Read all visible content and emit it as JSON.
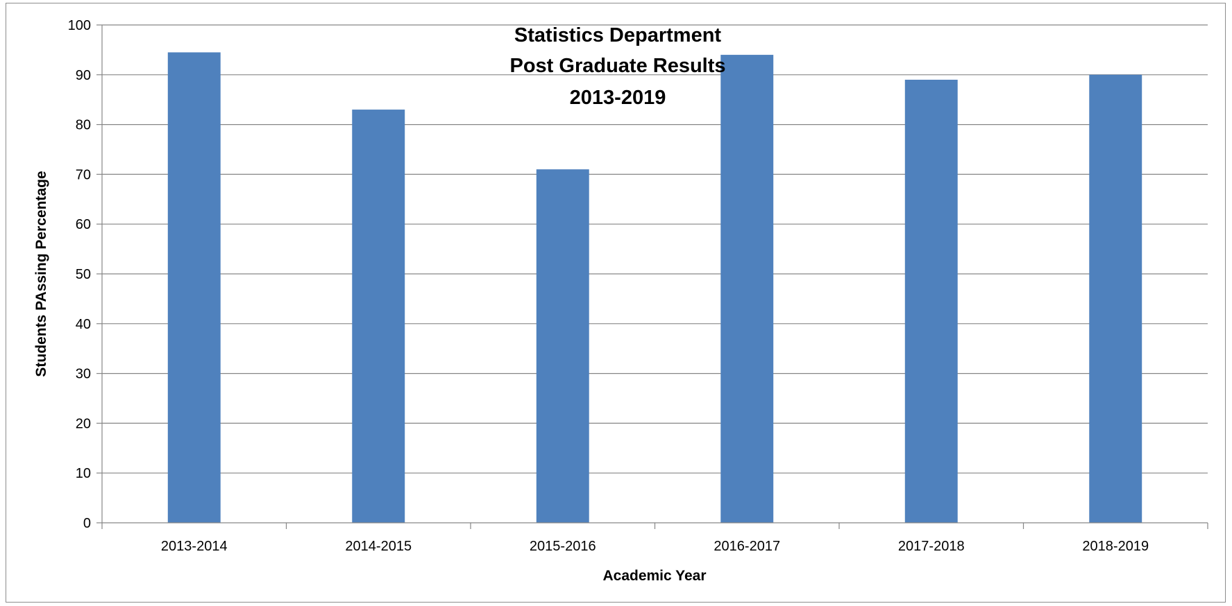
{
  "chart_data": {
    "type": "bar",
    "title_lines": [
      "Statistics Department",
      "Post Graduate Results",
      "2013-2019"
    ],
    "xlabel": "Academic Year",
    "ylabel": "Students PAssing Percentage",
    "categories": [
      "2013-2014",
      "2014-2015",
      "2015-2016",
      "2016-2017",
      "2017-2018",
      "2018-2019"
    ],
    "values": [
      94.5,
      83,
      71,
      94,
      89,
      90
    ],
    "ylim": [
      0,
      100
    ],
    "yticks": [
      "0",
      "10",
      "20",
      "30",
      "40",
      "50",
      "60",
      "70",
      "80",
      "90",
      "100"
    ],
    "grid": true,
    "legend": "none",
    "bar_color": "#4f81bd",
    "grid_color": "#868686"
  }
}
